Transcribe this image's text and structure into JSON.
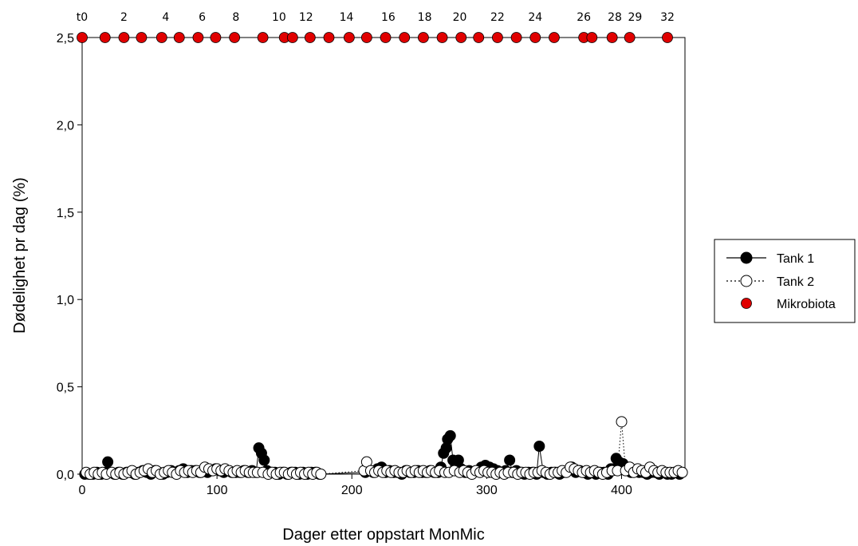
{
  "chart_data": {
    "type": "scatter",
    "title": "",
    "xlabel": "Dager etter oppstart MonMic",
    "ylabel": "Dødelighet pr dag (%)",
    "xlim": [
      0,
      447
    ],
    "ylim": [
      0,
      2.5
    ],
    "x_ticks": [
      0,
      100,
      200,
      300,
      400
    ],
    "x_tick_labels": [
      "0",
      "100",
      "200",
      "300",
      "400"
    ],
    "y_ticks": [
      0,
      0.5,
      1.0,
      1.5,
      2.0,
      2.5
    ],
    "y_tick_labels": [
      "0,0",
      "0,5",
      "1,0",
      "1,5",
      "2,0",
      "2,5"
    ],
    "grid": false,
    "legend_position": "right",
    "series": [
      {
        "name": "Tank 1",
        "style": "filled circle, solid line",
        "color": "#000000",
        "x": [
          2,
          5,
          8,
          11,
          14,
          17,
          19,
          21,
          24,
          27,
          30,
          33,
          36,
          39,
          42,
          45,
          48,
          51,
          54,
          57,
          60,
          63,
          66,
          69,
          72,
          75,
          78,
          81,
          84,
          87,
          90,
          93,
          96,
          99,
          102,
          105,
          108,
          111,
          114,
          117,
          120,
          123,
          126,
          129,
          131,
          133,
          135,
          137,
          140,
          143,
          146,
          149,
          152,
          155,
          158,
          161,
          164,
          167,
          170,
          173,
          176,
          210,
          213,
          216,
          219,
          222,
          225,
          228,
          231,
          234,
          237,
          240,
          243,
          246,
          249,
          252,
          255,
          258,
          261,
          264,
          266,
          268,
          270,
          271,
          273,
          275,
          277,
          279,
          281,
          284,
          287,
          290,
          293,
          296,
          299,
          302,
          305,
          308,
          311,
          314,
          317,
          319,
          322,
          325,
          328,
          331,
          334,
          337,
          339,
          342,
          345,
          348,
          351,
          354,
          357,
          360,
          363,
          366,
          369,
          372,
          375,
          378,
          381,
          384,
          387,
          390,
          392,
          394,
          396,
          398,
          401,
          404,
          407,
          410,
          413,
          416,
          419,
          422,
          425,
          428,
          431,
          434,
          437,
          440,
          443
        ],
        "values": [
          0,
          0,
          0,
          0.01,
          0,
          0.01,
          0.07,
          0.01,
          0,
          0.01,
          0,
          0.01,
          0.01,
          0,
          0.01,
          0.02,
          0.01,
          0,
          0.02,
          0.01,
          0,
          0.01,
          0.02,
          0.01,
          0.02,
          0.03,
          0.01,
          0.02,
          0.02,
          0.01,
          0.02,
          0.01,
          0.02,
          0.03,
          0.02,
          0.01,
          0.02,
          0.01,
          0.01,
          0.01,
          0.02,
          0.01,
          0.02,
          0.01,
          0.15,
          0.12,
          0.08,
          0.02,
          0.01,
          0.01,
          0,
          0.01,
          0,
          0.01,
          0.01,
          0,
          0.01,
          0,
          0.01,
          0.01,
          0,
          0.01,
          0.02,
          0.01,
          0.03,
          0.04,
          0.01,
          0.02,
          0.01,
          0.01,
          0,
          0.02,
          0.01,
          0.01,
          0.02,
          0.01,
          0.01,
          0.02,
          0.01,
          0.01,
          0.04,
          0.12,
          0.15,
          0.2,
          0.22,
          0.08,
          0.05,
          0.08,
          0.03,
          0.01,
          0.02,
          0.01,
          0.02,
          0.04,
          0.05,
          0.04,
          0.03,
          0.02,
          0.01,
          0.02,
          0.08,
          0.01,
          0.02,
          0.01,
          0,
          0.01,
          0.01,
          0,
          0.16,
          0.01,
          0,
          0.01,
          0.01,
          0,
          0.01,
          0.02,
          0.04,
          0.01,
          0.02,
          0.01,
          0,
          0.01,
          0,
          0.01,
          0.01,
          0,
          0.03,
          0.03,
          0.09,
          0.07,
          0.06,
          0.03,
          0.01,
          0.02,
          0.01,
          0.01,
          0,
          0.01,
          0.01,
          0,
          0.01,
          0,
          0,
          0.01,
          0
        ]
      },
      {
        "name": "Tank 2",
        "style": "open circle, dotted line",
        "color": "#000000",
        "x": [
          3,
          6,
          9,
          12,
          15,
          18,
          22,
          25,
          28,
          31,
          34,
          37,
          40,
          43,
          46,
          49,
          52,
          55,
          58,
          61,
          64,
          67,
          70,
          73,
          76,
          79,
          82,
          85,
          88,
          91,
          94,
          97,
          100,
          103,
          106,
          109,
          112,
          115,
          118,
          121,
          124,
          127,
          130,
          134,
          138,
          141,
          144,
          147,
          150,
          153,
          156,
          159,
          162,
          165,
          168,
          171,
          174,
          177,
          209,
          211,
          214,
          217,
          220,
          223,
          226,
          229,
          232,
          235,
          238,
          241,
          244,
          247,
          250,
          253,
          256,
          259,
          262,
          265,
          269,
          272,
          276,
          280,
          283,
          286,
          289,
          292,
          295,
          298,
          301,
          304,
          307,
          310,
          313,
          316,
          320,
          323,
          326,
          329,
          332,
          335,
          338,
          341,
          344,
          347,
          350,
          353,
          356,
          359,
          362,
          365,
          368,
          371,
          374,
          377,
          380,
          383,
          386,
          389,
          393,
          397,
          400,
          403,
          406,
          409,
          412,
          415,
          418,
          421,
          424,
          427,
          430,
          433,
          436,
          439,
          442,
          445
        ],
        "values": [
          0.01,
          0,
          0.01,
          0,
          0.01,
          0,
          0.01,
          0,
          0.01,
          0,
          0.01,
          0.02,
          0,
          0.01,
          0.02,
          0.03,
          0.01,
          0.02,
          0,
          0.01,
          0.02,
          0.01,
          0,
          0.02,
          0.01,
          0.02,
          0.01,
          0.02,
          0.01,
          0.04,
          0.03,
          0.02,
          0.03,
          0.02,
          0.03,
          0.02,
          0.01,
          0.02,
          0.01,
          0.02,
          0.01,
          0.01,
          0.01,
          0.01,
          0,
          0.01,
          0,
          0.01,
          0.01,
          0,
          0.01,
          0,
          0.01,
          0,
          0.01,
          0,
          0.01,
          0,
          0.02,
          0.07,
          0.02,
          0.01,
          0.02,
          0.01,
          0.02,
          0.01,
          0.02,
          0.01,
          0.01,
          0.02,
          0.01,
          0.02,
          0.01,
          0.02,
          0.01,
          0.02,
          0.01,
          0.02,
          0.01,
          0.01,
          0.02,
          0.01,
          0.02,
          0.01,
          0,
          0.02,
          0.01,
          0.02,
          0.01,
          0.01,
          0,
          0.01,
          0,
          0.01,
          0.01,
          0,
          0.01,
          0.01,
          0,
          0.01,
          0.01,
          0.02,
          0.01,
          0,
          0.01,
          0.01,
          0.02,
          0.01,
          0.04,
          0.03,
          0.02,
          0.01,
          0.02,
          0.01,
          0.02,
          0.01,
          0,
          0.01,
          0.02,
          0.02,
          0.3,
          0.02,
          0.04,
          0.01,
          0.03,
          0.02,
          0.01,
          0.04,
          0.02,
          0.01,
          0.02,
          0.01,
          0.01,
          0.01,
          0.02,
          0.01
        ]
      },
      {
        "name": "Mikrobiota",
        "style": "red filled circle",
        "color": "#e00000",
        "x": [
          0,
          17,
          31,
          44,
          59,
          72,
          86,
          99,
          113,
          134,
          150,
          156,
          169,
          183,
          198,
          211,
          225,
          239,
          253,
          267,
          281,
          294,
          308,
          322,
          336,
          350,
          372,
          378,
          393,
          406,
          434
        ],
        "values": [
          2.5,
          2.5,
          2.5,
          2.5,
          2.5,
          2.5,
          2.5,
          2.5,
          2.5,
          2.5,
          2.5,
          2.5,
          2.5,
          2.5,
          2.5,
          2.5,
          2.5,
          2.5,
          2.5,
          2.5,
          2.5,
          2.5,
          2.5,
          2.5,
          2.5,
          2.5,
          2.5,
          2.5,
          2.5,
          2.5,
          2.5
        ]
      }
    ],
    "annotations": [
      {
        "text": "t0",
        "x": 0
      },
      {
        "text": "2",
        "x": 31
      },
      {
        "text": "4",
        "x": 62
      },
      {
        "text": "6",
        "x": 89
      },
      {
        "text": "8",
        "x": 114
      },
      {
        "text": "10",
        "x": 146
      },
      {
        "text": "12",
        "x": 166
      },
      {
        "text": "14",
        "x": 196
      },
      {
        "text": "16",
        "x": 227
      },
      {
        "text": "18",
        "x": 254
      },
      {
        "text": "20",
        "x": 280
      },
      {
        "text": "22",
        "x": 308
      },
      {
        "text": "24",
        "x": 336
      },
      {
        "text": "26",
        "x": 372
      },
      {
        "text": "28",
        "x": 395
      },
      {
        "text": "29",
        "x": 410
      },
      {
        "text": "32",
        "x": 434
      }
    ]
  }
}
